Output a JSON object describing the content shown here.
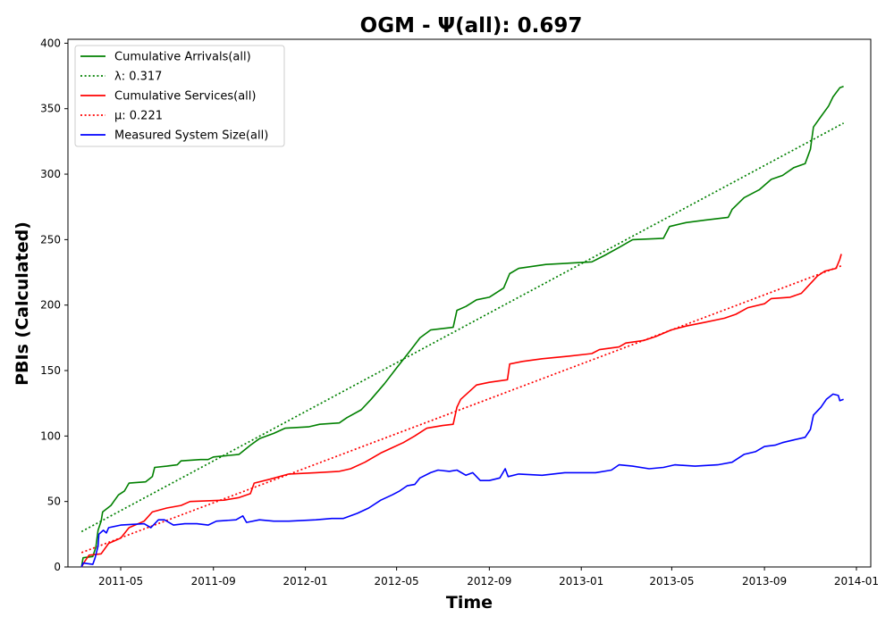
{
  "chart_data": {
    "type": "line",
    "title": "OGM -  Ψ(all): 0.697",
    "xlabel": "Time",
    "ylabel": "PBIs (Calculated)",
    "xlim": [
      "2011-02-20",
      "2014-01-20"
    ],
    "ylim": [
      0,
      403
    ],
    "x_ticks": [
      "2011-05",
      "2011-09",
      "2012-01",
      "2012-05",
      "2012-09",
      "2013-01",
      "2013-05",
      "2013-09",
      "2014-01"
    ],
    "y_ticks": [
      0,
      50,
      100,
      150,
      200,
      250,
      300,
      350,
      400
    ],
    "legend_position": "top-left",
    "grid": false,
    "series": [
      {
        "name": "Cumulative Arrivals(all)",
        "color": "#008000",
        "style": "solid",
        "points": [
          [
            "2011-03-10",
            0
          ],
          [
            "2011-03-12",
            7
          ],
          [
            "2011-03-25",
            8
          ],
          [
            "2011-03-29",
            15
          ],
          [
            "2011-04-01",
            28
          ],
          [
            "2011-04-05",
            35
          ],
          [
            "2011-04-07",
            42
          ],
          [
            "2011-04-18",
            47
          ],
          [
            "2011-04-28",
            55
          ],
          [
            "2011-05-06",
            58
          ],
          [
            "2011-05-12",
            64
          ],
          [
            "2011-06-03",
            65
          ],
          [
            "2011-06-12",
            69
          ],
          [
            "2011-06-15",
            76
          ],
          [
            "2011-07-01",
            77
          ],
          [
            "2011-07-15",
            78
          ],
          [
            "2011-07-20",
            81
          ],
          [
            "2011-08-15",
            82
          ],
          [
            "2011-08-25",
            82
          ],
          [
            "2011-09-01",
            84
          ],
          [
            "2011-10-05",
            86
          ],
          [
            "2011-10-20",
            93
          ],
          [
            "2011-11-01",
            98
          ],
          [
            "2011-11-20",
            102
          ],
          [
            "2011-12-05",
            106
          ],
          [
            "2012-01-05",
            107
          ],
          [
            "2012-01-20",
            109
          ],
          [
            "2012-02-15",
            110
          ],
          [
            "2012-02-25",
            114
          ],
          [
            "2012-03-15",
            120
          ],
          [
            "2012-03-28",
            128
          ],
          [
            "2012-04-15",
            140
          ],
          [
            "2012-05-01",
            152
          ],
          [
            "2012-05-20",
            166
          ],
          [
            "2012-06-01",
            175
          ],
          [
            "2012-06-15",
            181
          ],
          [
            "2012-07-15",
            183
          ],
          [
            "2012-07-20",
            196
          ],
          [
            "2012-08-01",
            199
          ],
          [
            "2012-08-15",
            204
          ],
          [
            "2012-09-01",
            206
          ],
          [
            "2012-09-20",
            213
          ],
          [
            "2012-09-28",
            224
          ],
          [
            "2012-10-10",
            228
          ],
          [
            "2012-11-15",
            231
          ],
          [
            "2013-01-15",
            233
          ],
          [
            "2013-02-01",
            238
          ],
          [
            "2013-02-20",
            244
          ],
          [
            "2013-03-10",
            250
          ],
          [
            "2013-04-20",
            251
          ],
          [
            "2013-04-28",
            260
          ],
          [
            "2013-05-20",
            263
          ],
          [
            "2013-06-15",
            265
          ],
          [
            "2013-07-15",
            267
          ],
          [
            "2013-07-20",
            273
          ],
          [
            "2013-08-05",
            282
          ],
          [
            "2013-08-25",
            288
          ],
          [
            "2013-09-10",
            296
          ],
          [
            "2013-09-25",
            299
          ],
          [
            "2013-10-10",
            305
          ],
          [
            "2013-10-25",
            308
          ],
          [
            "2013-11-01",
            319
          ],
          [
            "2013-11-05",
            336
          ],
          [
            "2013-11-15",
            344
          ],
          [
            "2013-11-25",
            352
          ],
          [
            "2013-12-01",
            359
          ],
          [
            "2013-12-10",
            366
          ],
          [
            "2013-12-15",
            367
          ]
        ]
      },
      {
        "name": "λ: 0.317",
        "color": "#008000",
        "style": "dotted",
        "points": [
          [
            "2011-03-10",
            27
          ],
          [
            "2013-12-15",
            339
          ]
        ]
      },
      {
        "name": "Cumulative Services(all)",
        "color": "#ff0000",
        "style": "solid",
        "points": [
          [
            "2011-03-10",
            0
          ],
          [
            "2011-03-14",
            4
          ],
          [
            "2011-03-20",
            9
          ],
          [
            "2011-04-05",
            10
          ],
          [
            "2011-04-15",
            18
          ],
          [
            "2011-05-01",
            22
          ],
          [
            "2011-05-12",
            30
          ],
          [
            "2011-06-01",
            35
          ],
          [
            "2011-06-12",
            42
          ],
          [
            "2011-07-01",
            45
          ],
          [
            "2011-07-20",
            47
          ],
          [
            "2011-08-01",
            50
          ],
          [
            "2011-09-15",
            51
          ],
          [
            "2011-10-05",
            53
          ],
          [
            "2011-10-20",
            56
          ],
          [
            "2011-10-25",
            64
          ],
          [
            "2011-11-15",
            67
          ],
          [
            "2011-12-10",
            71
          ],
          [
            "2012-01-15",
            72
          ],
          [
            "2012-02-15",
            73
          ],
          [
            "2012-03-01",
            75
          ],
          [
            "2012-03-20",
            80
          ],
          [
            "2012-04-10",
            87
          ],
          [
            "2012-04-25",
            91
          ],
          [
            "2012-05-10",
            95
          ],
          [
            "2012-05-25",
            100
          ],
          [
            "2012-06-10",
            106
          ],
          [
            "2012-07-01",
            108
          ],
          [
            "2012-07-15",
            109
          ],
          [
            "2012-07-20",
            122
          ],
          [
            "2012-07-25",
            128
          ],
          [
            "2012-08-15",
            139
          ],
          [
            "2012-09-01",
            141
          ],
          [
            "2012-09-25",
            143
          ],
          [
            "2012-09-28",
            155
          ],
          [
            "2012-10-15",
            157
          ],
          [
            "2012-11-10",
            159
          ],
          [
            "2012-12-15",
            161
          ],
          [
            "2013-01-15",
            163
          ],
          [
            "2013-01-25",
            166
          ],
          [
            "2013-02-20",
            168
          ],
          [
            "2013-03-01",
            171
          ],
          [
            "2013-03-25",
            173
          ],
          [
            "2013-04-10",
            176
          ],
          [
            "2013-04-30",
            181
          ],
          [
            "2013-05-20",
            184
          ],
          [
            "2013-06-15",
            187
          ],
          [
            "2013-07-10",
            190
          ],
          [
            "2013-07-25",
            193
          ],
          [
            "2013-08-10",
            198
          ],
          [
            "2013-09-01",
            201
          ],
          [
            "2013-09-10",
            205
          ],
          [
            "2013-10-05",
            206
          ],
          [
            "2013-10-20",
            209
          ],
          [
            "2013-10-28",
            214
          ],
          [
            "2013-11-10",
            222
          ],
          [
            "2013-11-20",
            226
          ],
          [
            "2013-12-05",
            228
          ],
          [
            "2013-12-10",
            235
          ],
          [
            "2013-12-12",
            239
          ]
        ]
      },
      {
        "name": "μ: 0.221",
        "color": "#ff0000",
        "style": "dotted",
        "points": [
          [
            "2011-03-10",
            11
          ],
          [
            "2013-12-12",
            230
          ]
        ]
      },
      {
        "name": "Measured System Size(all)",
        "color": "#0000ff",
        "style": "solid",
        "points": [
          [
            "2011-03-10",
            0
          ],
          [
            "2011-03-12",
            3
          ],
          [
            "2011-03-25",
            2
          ],
          [
            "2011-03-28",
            7
          ],
          [
            "2011-04-01",
            16
          ],
          [
            "2011-04-02",
            25
          ],
          [
            "2011-04-08",
            28
          ],
          [
            "2011-04-12",
            26
          ],
          [
            "2011-04-15",
            30
          ],
          [
            "2011-05-01",
            32
          ],
          [
            "2011-06-01",
            33
          ],
          [
            "2011-06-10",
            30
          ],
          [
            "2011-06-20",
            36
          ],
          [
            "2011-06-28",
            36
          ],
          [
            "2011-07-10",
            32
          ],
          [
            "2011-07-25",
            33
          ],
          [
            "2011-08-10",
            33
          ],
          [
            "2011-08-25",
            32
          ],
          [
            "2011-09-05",
            35
          ],
          [
            "2011-10-01",
            36
          ],
          [
            "2011-10-10",
            39
          ],
          [
            "2011-10-15",
            34
          ],
          [
            "2011-11-01",
            36
          ],
          [
            "2011-11-20",
            35
          ],
          [
            "2011-12-10",
            35
          ],
          [
            "2012-01-15",
            36
          ],
          [
            "2012-02-05",
            37
          ],
          [
            "2012-02-20",
            37
          ],
          [
            "2012-03-10",
            41
          ],
          [
            "2012-03-25",
            45
          ],
          [
            "2012-04-10",
            51
          ],
          [
            "2012-04-25",
            55
          ],
          [
            "2012-05-05",
            58
          ],
          [
            "2012-05-15",
            62
          ],
          [
            "2012-05-25",
            63
          ],
          [
            "2012-06-01",
            68
          ],
          [
            "2012-06-15",
            72
          ],
          [
            "2012-06-25",
            74
          ],
          [
            "2012-07-10",
            73
          ],
          [
            "2012-07-20",
            74
          ],
          [
            "2012-08-01",
            70
          ],
          [
            "2012-08-10",
            72
          ],
          [
            "2012-08-20",
            66
          ],
          [
            "2012-09-01",
            66
          ],
          [
            "2012-09-15",
            68
          ],
          [
            "2012-09-22",
            75
          ],
          [
            "2012-09-26",
            69
          ],
          [
            "2012-10-10",
            71
          ],
          [
            "2012-11-10",
            70
          ],
          [
            "2012-12-10",
            72
          ],
          [
            "2013-01-01",
            72
          ],
          [
            "2013-01-20",
            72
          ],
          [
            "2013-02-10",
            74
          ],
          [
            "2013-02-20",
            78
          ],
          [
            "2013-03-10",
            77
          ],
          [
            "2013-04-01",
            75
          ],
          [
            "2013-04-20",
            76
          ],
          [
            "2013-05-05",
            78
          ],
          [
            "2013-06-01",
            77
          ],
          [
            "2013-07-01",
            78
          ],
          [
            "2013-07-20",
            80
          ],
          [
            "2013-08-05",
            86
          ],
          [
            "2013-08-20",
            88
          ],
          [
            "2013-09-01",
            92
          ],
          [
            "2013-09-15",
            93
          ],
          [
            "2013-09-25",
            95
          ],
          [
            "2013-10-10",
            97
          ],
          [
            "2013-10-25",
            99
          ],
          [
            "2013-11-01",
            105
          ],
          [
            "2013-11-05",
            116
          ],
          [
            "2013-11-15",
            122
          ],
          [
            "2013-11-22",
            128
          ],
          [
            "2013-12-01",
            132
          ],
          [
            "2013-12-08",
            131
          ],
          [
            "2013-12-10",
            127
          ],
          [
            "2013-12-15",
            128
          ]
        ]
      }
    ]
  }
}
